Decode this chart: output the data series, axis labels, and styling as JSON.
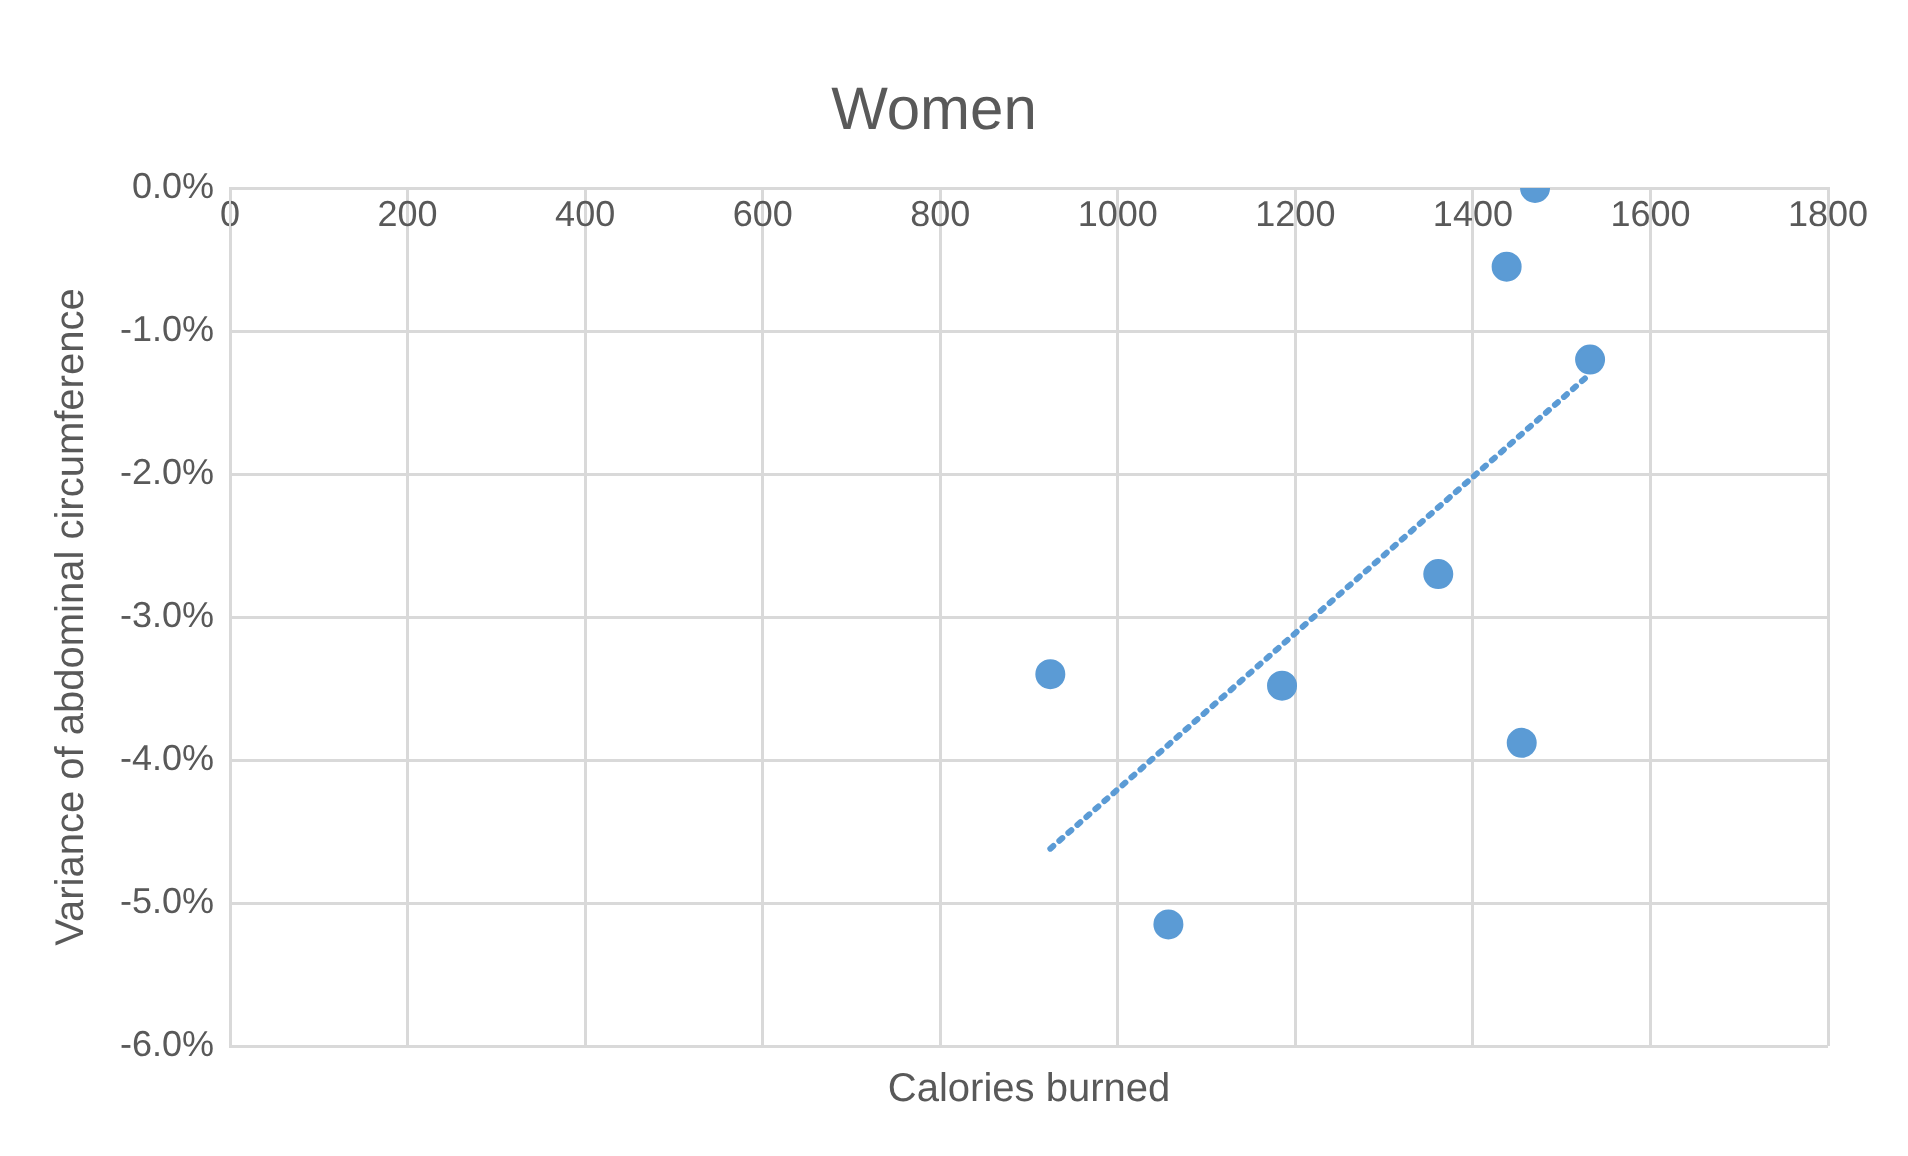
{
  "chart_data": {
    "type": "scatter",
    "title": "Women",
    "xlabel": "Calories burned",
    "ylabel": "Variance of abdominal circumference",
    "series": [
      {
        "color": "#5b9bd5",
        "x": [
          924,
          1057,
          1185,
          1361,
          1438,
          1470,
          1455,
          1532
        ],
        "values": [
          -3.4,
          -5.15,
          -3.48,
          -2.7,
          -0.55,
          0.0,
          -3.88,
          -1.2
        ],
        "marker": "circle"
      },
      {
        "type": "line",
        "color": "#5b9bd5",
        "x": [
          924,
          1532
        ],
        "values": [
          -4.62,
          -1.3
        ],
        "line_style": "dotted",
        "marker": "none"
      }
    ],
    "xlim": [
      0,
      1800
    ],
    "xticks": [
      0,
      200,
      400,
      600,
      800,
      1000,
      1200,
      1400,
      1600,
      1800
    ],
    "ylim": [
      -6,
      0
    ],
    "yticks": [
      {
        "value": 0,
        "label": "0.0%"
      },
      {
        "value": -1,
        "label": "-1.0%"
      },
      {
        "value": -2,
        "label": "-2.0%"
      },
      {
        "value": -3,
        "label": "-3.0%"
      },
      {
        "value": -4,
        "label": "-4.0%"
      },
      {
        "value": -5,
        "label": "-5.0%"
      },
      {
        "value": -6,
        "label": "-6.0%"
      }
    ],
    "grid": true,
    "legend": false
  }
}
